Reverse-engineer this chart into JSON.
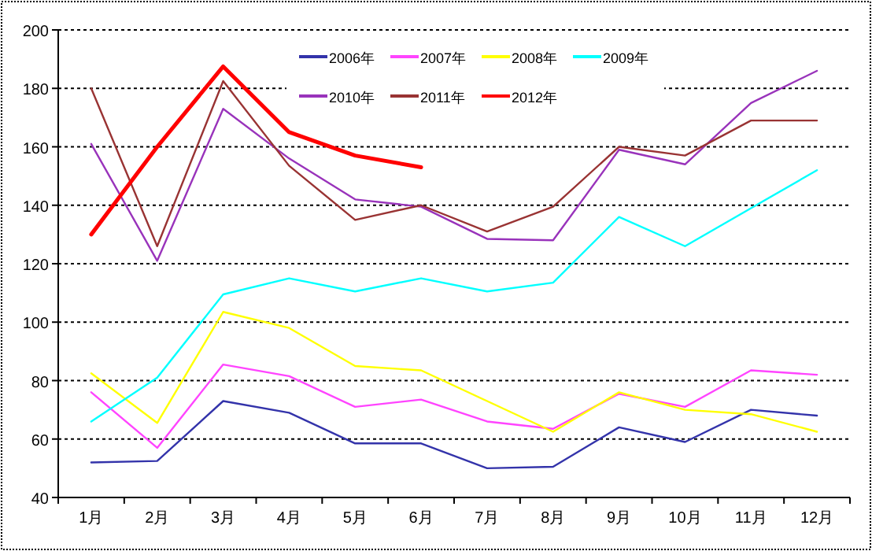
{
  "chart_data": {
    "type": "line",
    "categories": [
      "1月",
      "2月",
      "3月",
      "4月",
      "5月",
      "6月",
      "7月",
      "8月",
      "9月",
      "10月",
      "11月",
      "12月"
    ],
    "series": [
      {
        "name": "2006年",
        "color": "#3333aa",
        "values": [
          52,
          52.5,
          73,
          69,
          58.5,
          58.5,
          50,
          50.5,
          64,
          59,
          70,
          68
        ]
      },
      {
        "name": "2007年",
        "color": "#ff44ff",
        "values": [
          76,
          57,
          85.5,
          81.5,
          71,
          73.5,
          66,
          63.5,
          75.5,
          71,
          83.5,
          82
        ]
      },
      {
        "name": "2008年",
        "color": "#ffff00",
        "values": [
          82.5,
          65.5,
          103.5,
          98,
          85,
          83.5,
          73,
          62.5,
          76,
          70,
          68.5,
          62.5
        ]
      },
      {
        "name": "2009年",
        "color": "#00ffff",
        "values": [
          66,
          81,
          109.5,
          115,
          110.5,
          115,
          110.5,
          113.5,
          136,
          126,
          139,
          152
        ]
      },
      {
        "name": "2010年",
        "color": "#9933bb",
        "values": [
          161,
          121,
          173,
          156,
          142,
          139.5,
          128.5,
          128,
          159,
          154,
          175,
          186
        ]
      },
      {
        "name": "2011年",
        "color": "#993333",
        "values": [
          180,
          126,
          182.5,
          153.5,
          135,
          140,
          131,
          139.5,
          160,
          157,
          169,
          169
        ]
      },
      {
        "name": "2012年",
        "color": "#ff0000",
        "values": [
          130,
          160,
          187.5,
          165,
          157,
          153,
          null,
          null,
          null,
          null,
          null,
          null
        ]
      }
    ],
    "ylim": [
      40,
      200
    ],
    "yticks": [
      40,
      60,
      80,
      100,
      120,
      140,
      160,
      180,
      200
    ],
    "grid": "y",
    "legend": "top",
    "line_style": "solid",
    "marker": "none"
  }
}
